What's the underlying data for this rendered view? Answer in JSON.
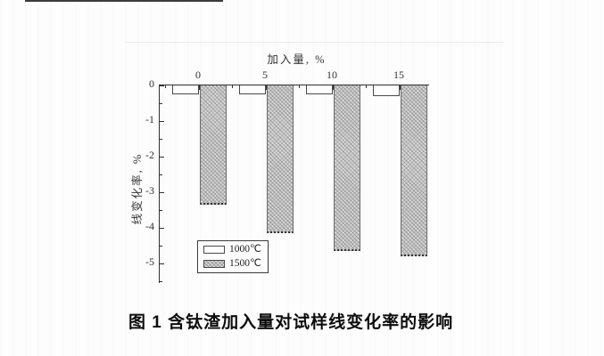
{
  "figure": {
    "caption": "图 1  含钛渣加入量对试样线变化率的影响"
  },
  "chart_data": {
    "type": "bar",
    "title": "图 1  含钛渣加入量对试样线变化率的影响",
    "xlabel": "加入量, %",
    "ylabel": "线变化率, %",
    "xaxis_position": "top",
    "categories": [
      "0",
      "5",
      "10",
      "15"
    ],
    "series": [
      {
        "name": "1000℃",
        "style": "white",
        "values": [
          -0.25,
          -0.25,
          -0.25,
          -0.3
        ]
      },
      {
        "name": "1500℃",
        "style": "hatched",
        "values": [
          -3.35,
          -4.15,
          -4.65,
          -4.8
        ]
      }
    ],
    "yticks": [
      0,
      -1,
      -2,
      -3,
      -4,
      -5
    ],
    "ylim": [
      0,
      -5.5
    ],
    "grid": false,
    "legend_position": "lower-left",
    "colors": {
      "axis": "#2f2f2f",
      "text": "#222222",
      "bar_white_fill": "#fdfdfd",
      "bar_hatch_base": "#d8d8d8",
      "bar_hatch_line": "#6e6e6e"
    }
  }
}
